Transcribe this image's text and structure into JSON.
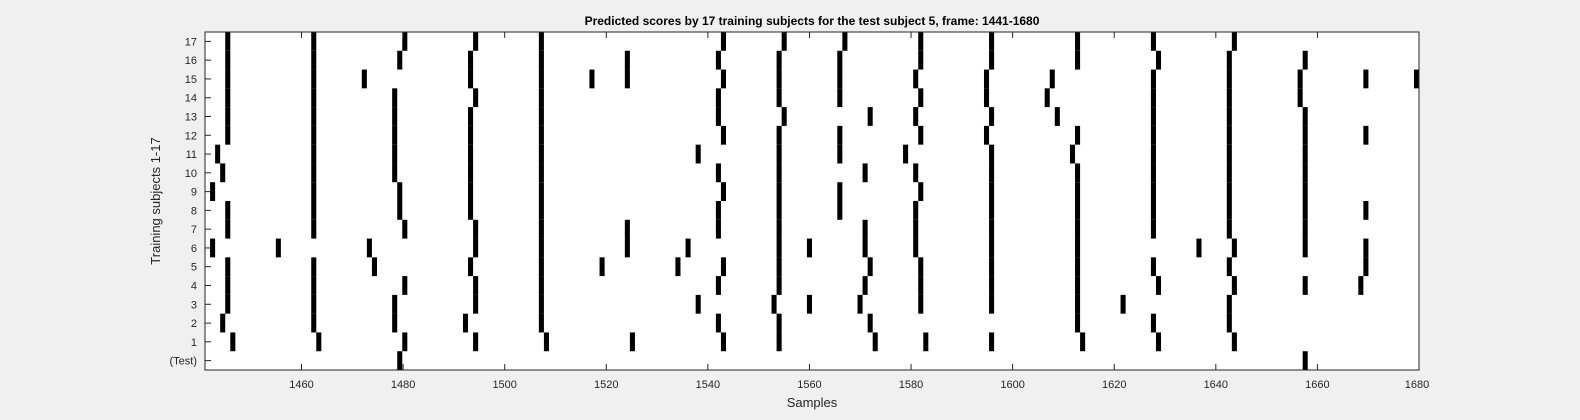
{
  "chart_data": {
    "type": "raster",
    "title": "Predicted scores by 17 training subjects for the test subject 5, frame: 1441-1680",
    "xlabel": "Samples",
    "ylabel": "Training subjects 1-17",
    "xlim": [
      1441,
      1680
    ],
    "xticks": [
      1460,
      1480,
      1500,
      1520,
      1540,
      1560,
      1580,
      1600,
      1620,
      1640,
      1660,
      1680
    ],
    "yticks": [
      "(Test)",
      "1",
      "2",
      "3",
      "4",
      "5",
      "6",
      "7",
      "8",
      "9",
      "10",
      "11",
      "12",
      "13",
      "14",
      "15",
      "16",
      "17"
    ],
    "grid": false,
    "colors": {
      "mark": "#000000",
      "background": "#ffffff",
      "figure": "#f0f0f0"
    },
    "rows": [
      {
        "label": "(Test)",
        "events": [
          1479,
          1658
        ]
      },
      {
        "label": "1",
        "events": [
          1446,
          1463,
          1480,
          1494,
          1508,
          1525,
          1543,
          1554,
          1573,
          1583,
          1596,
          1614,
          1629,
          1644
        ]
      },
      {
        "label": "2",
        "events": [
          1444,
          1462,
          1478,
          1492,
          1507,
          1542,
          1554,
          1572,
          1613,
          1628,
          1643
        ]
      },
      {
        "label": "3",
        "events": [
          1445,
          1462,
          1478,
          1494,
          1507,
          1538,
          1553,
          1560,
          1570,
          1582,
          1596,
          1613,
          1622,
          1643
        ]
      },
      {
        "label": "4",
        "events": [
          1445,
          1462,
          1480,
          1494,
          1507,
          1542,
          1554,
          1571,
          1582,
          1596,
          1613,
          1629,
          1644,
          1658,
          1669
        ]
      },
      {
        "label": "5",
        "events": [
          1445,
          1462,
          1474,
          1493,
          1507,
          1519,
          1534,
          1543,
          1554,
          1572,
          1582,
          1596,
          1613,
          1628,
          1643,
          1670
        ]
      },
      {
        "label": "6",
        "events": [
          1442,
          1455,
          1473,
          1494,
          1507,
          1524,
          1536,
          1554,
          1560,
          1571,
          1581,
          1596,
          1613,
          1637,
          1644,
          1658,
          1670
        ]
      },
      {
        "label": "7",
        "events": [
          1445,
          1462,
          1480,
          1494,
          1507,
          1524,
          1542,
          1554,
          1571,
          1581,
          1596,
          1613,
          1628,
          1643,
          1658
        ]
      },
      {
        "label": "8",
        "events": [
          1445,
          1462,
          1479,
          1493,
          1507,
          1542,
          1554,
          1566,
          1581,
          1596,
          1613,
          1628,
          1643,
          1658,
          1670
        ]
      },
      {
        "label": "9",
        "events": [
          1442,
          1462,
          1479,
          1493,
          1507,
          1543,
          1554,
          1566,
          1582,
          1596,
          1613,
          1628,
          1643,
          1658
        ]
      },
      {
        "label": "10",
        "events": [
          1444,
          1462,
          1478,
          1493,
          1507,
          1542,
          1554,
          1571,
          1581,
          1596,
          1613,
          1628,
          1643,
          1658
        ]
      },
      {
        "label": "11",
        "events": [
          1443,
          1462,
          1478,
          1493,
          1507,
          1538,
          1554,
          1566,
          1579,
          1596,
          1612,
          1628,
          1643,
          1658
        ]
      },
      {
        "label": "12",
        "events": [
          1445,
          1462,
          1478,
          1493,
          1507,
          1543,
          1554,
          1566,
          1582,
          1595,
          1613,
          1628,
          1643,
          1658,
          1670
        ]
      },
      {
        "label": "13",
        "events": [
          1445,
          1462,
          1478,
          1493,
          1507,
          1542,
          1555,
          1572,
          1581,
          1596,
          1609,
          1628,
          1643,
          1658
        ]
      },
      {
        "label": "14",
        "events": [
          1445,
          1462,
          1478,
          1494,
          1507,
          1542,
          1554,
          1566,
          1582,
          1595,
          1607,
          1628,
          1643,
          1657
        ]
      },
      {
        "label": "15",
        "events": [
          1445,
          1462,
          1472,
          1493,
          1507,
          1517,
          1524,
          1543,
          1554,
          1566,
          1581,
          1595,
          1608,
          1628,
          1643,
          1657,
          1670,
          1680
        ]
      },
      {
        "label": "16",
        "events": [
          1445,
          1462,
          1479,
          1493,
          1507,
          1524,
          1542,
          1554,
          1566,
          1582,
          1596,
          1613,
          1629,
          1643,
          1658
        ]
      },
      {
        "label": "17",
        "events": [
          1445,
          1462,
          1480,
          1494,
          1507,
          1543,
          1555,
          1567,
          1582,
          1596,
          1613,
          1628,
          1644
        ]
      }
    ]
  }
}
